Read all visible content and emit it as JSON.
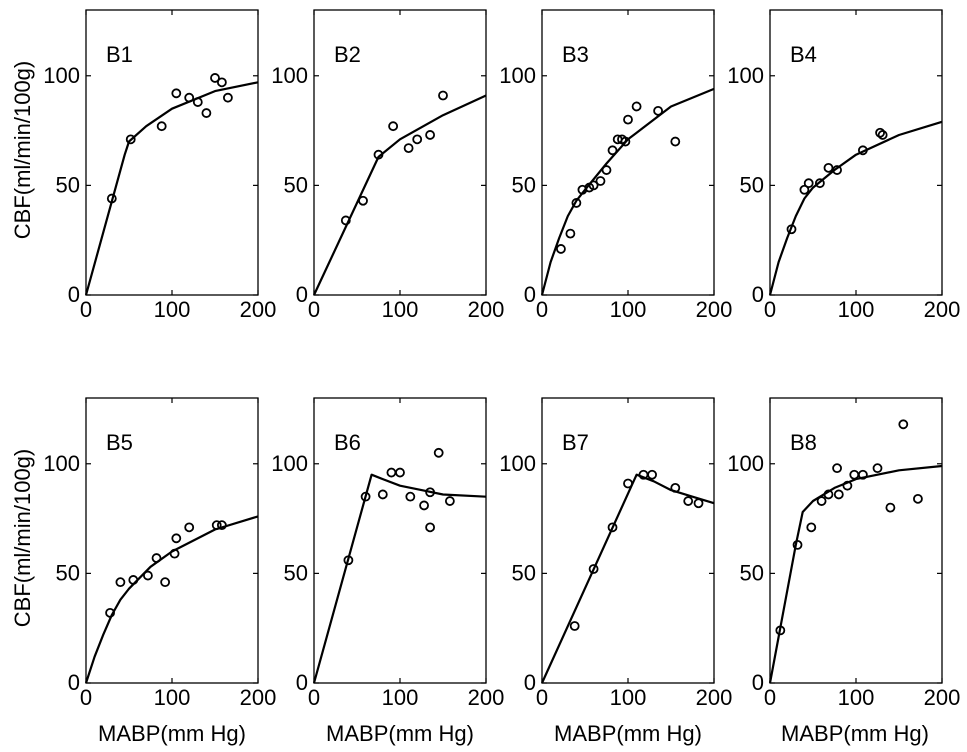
{
  "figure": {
    "ylabel": "CBF(ml/min/100g)",
    "xlabel": "MABP(mm Hg)"
  },
  "chart_data": [
    {
      "type": "scatter",
      "panel_label": "B1",
      "xlim": [
        0,
        200
      ],
      "ylim": [
        0,
        130
      ],
      "xticks": [
        0,
        100,
        200
      ],
      "yticks": [
        0,
        50,
        100
      ],
      "ylabel": "CBF(ml/min/100g)",
      "xlabel": "",
      "points": [
        [
          30,
          44
        ],
        [
          52,
          71
        ],
        [
          88,
          77
        ],
        [
          105,
          92
        ],
        [
          120,
          90
        ],
        [
          130,
          88
        ],
        [
          140,
          83
        ],
        [
          150,
          99
        ],
        [
          158,
          97
        ],
        [
          165,
          90
        ]
      ],
      "fit": [
        [
          0,
          0
        ],
        [
          45,
          64
        ],
        [
          50,
          70
        ],
        [
          70,
          77
        ],
        [
          100,
          85
        ],
        [
          150,
          93
        ],
        [
          200,
          97
        ]
      ]
    },
    {
      "type": "scatter",
      "panel_label": "B2",
      "xlim": [
        0,
        200
      ],
      "ylim": [
        0,
        130
      ],
      "xticks": [
        0,
        100,
        200
      ],
      "yticks": [
        0,
        50,
        100
      ],
      "ylabel": "",
      "xlabel": "",
      "points": [
        [
          37,
          34
        ],
        [
          57,
          43
        ],
        [
          75,
          64
        ],
        [
          92,
          77
        ],
        [
          110,
          67
        ],
        [
          120,
          71
        ],
        [
          135,
          73
        ],
        [
          150,
          91
        ]
      ],
      "fit": [
        [
          0,
          0
        ],
        [
          75,
          63
        ],
        [
          100,
          71
        ],
        [
          150,
          82
        ],
        [
          200,
          91
        ]
      ]
    },
    {
      "type": "scatter",
      "panel_label": "B3",
      "xlim": [
        0,
        200
      ],
      "ylim": [
        0,
        130
      ],
      "xticks": [
        0,
        100,
        200
      ],
      "yticks": [
        0,
        50,
        100
      ],
      "ylabel": "",
      "xlabel": "",
      "points": [
        [
          22,
          21
        ],
        [
          33,
          28
        ],
        [
          40,
          42
        ],
        [
          47,
          48
        ],
        [
          55,
          49
        ],
        [
          60,
          50
        ],
        [
          68,
          52
        ],
        [
          75,
          57
        ],
        [
          82,
          66
        ],
        [
          88,
          71
        ],
        [
          93,
          71
        ],
        [
          97,
          70
        ],
        [
          100,
          80
        ],
        [
          110,
          86
        ],
        [
          135,
          84
        ],
        [
          155,
          70
        ]
      ],
      "fit": [
        [
          0,
          0
        ],
        [
          10,
          15
        ],
        [
          20,
          26
        ],
        [
          30,
          36
        ],
        [
          40,
          43
        ],
        [
          50,
          48
        ],
        [
          75,
          60
        ],
        [
          100,
          71
        ],
        [
          150,
          86
        ],
        [
          200,
          94
        ]
      ]
    },
    {
      "type": "scatter",
      "panel_label": "B4",
      "xlim": [
        0,
        200
      ],
      "ylim": [
        0,
        130
      ],
      "xticks": [
        0,
        100,
        200
      ],
      "yticks": [
        0,
        50,
        100
      ],
      "ylabel": "",
      "xlabel": "",
      "points": [
        [
          25,
          30
        ],
        [
          40,
          48
        ],
        [
          45,
          51
        ],
        [
          58,
          51
        ],
        [
          68,
          58
        ],
        [
          78,
          57
        ],
        [
          108,
          66
        ],
        [
          128,
          74
        ],
        [
          131,
          73
        ]
      ],
      "fit": [
        [
          0,
          0
        ],
        [
          10,
          15
        ],
        [
          20,
          26
        ],
        [
          30,
          36
        ],
        [
          40,
          44
        ],
        [
          50,
          49
        ],
        [
          75,
          57
        ],
        [
          100,
          64
        ],
        [
          150,
          73
        ],
        [
          200,
          79
        ]
      ]
    },
    {
      "type": "scatter",
      "panel_label": "B5",
      "xlim": [
        0,
        200
      ],
      "ylim": [
        0,
        130
      ],
      "xticks": [
        0,
        100,
        200
      ],
      "yticks": [
        0,
        50,
        100
      ],
      "ylabel": "CBF(ml/min/100g)",
      "xlabel": "MABP(mm Hg)",
      "points": [
        [
          28,
          32
        ],
        [
          40,
          46
        ],
        [
          55,
          47
        ],
        [
          72,
          49
        ],
        [
          82,
          57
        ],
        [
          92,
          46
        ],
        [
          103,
          59
        ],
        [
          105,
          66
        ],
        [
          120,
          71
        ],
        [
          152,
          72
        ],
        [
          158,
          72
        ]
      ],
      "fit": [
        [
          0,
          0
        ],
        [
          10,
          12
        ],
        [
          20,
          22
        ],
        [
          30,
          31
        ],
        [
          40,
          38
        ],
        [
          50,
          43
        ],
        [
          75,
          53
        ],
        [
          100,
          60
        ],
        [
          150,
          70
        ],
        [
          200,
          76
        ]
      ]
    },
    {
      "type": "scatter",
      "panel_label": "B6",
      "xlim": [
        0,
        200
      ],
      "ylim": [
        0,
        130
      ],
      "xticks": [
        0,
        100,
        200
      ],
      "yticks": [
        0,
        50,
        100
      ],
      "ylabel": "",
      "xlabel": "MABP(mm Hg)",
      "points": [
        [
          40,
          56
        ],
        [
          60,
          85
        ],
        [
          80,
          86
        ],
        [
          90,
          96
        ],
        [
          100,
          96
        ],
        [
          112,
          85
        ],
        [
          128,
          81
        ],
        [
          135,
          71
        ],
        [
          135,
          87
        ],
        [
          145,
          105
        ],
        [
          158,
          83
        ]
      ],
      "fit": [
        [
          0,
          0
        ],
        [
          67,
          95
        ],
        [
          80,
          93
        ],
        [
          100,
          90
        ],
        [
          125,
          88
        ],
        [
          150,
          86
        ],
        [
          200,
          85
        ]
      ]
    },
    {
      "type": "scatter",
      "panel_label": "B7",
      "xlim": [
        0,
        200
      ],
      "ylim": [
        0,
        130
      ],
      "xticks": [
        0,
        100,
        200
      ],
      "yticks": [
        0,
        50,
        100
      ],
      "ylabel": "",
      "xlabel": "MABP(mm Hg)",
      "points": [
        [
          38,
          26
        ],
        [
          60,
          52
        ],
        [
          82,
          71
        ],
        [
          100,
          91
        ],
        [
          118,
          95
        ],
        [
          128,
          95
        ],
        [
          155,
          89
        ],
        [
          170,
          83
        ],
        [
          182,
          82
        ]
      ],
      "fit": [
        [
          0,
          0
        ],
        [
          110,
          95
        ],
        [
          130,
          92
        ],
        [
          150,
          88
        ],
        [
          175,
          85
        ],
        [
          200,
          82
        ]
      ]
    },
    {
      "type": "scatter",
      "panel_label": "B8",
      "xlim": [
        0,
        200
      ],
      "ylim": [
        0,
        130
      ],
      "xticks": [
        0,
        100,
        200
      ],
      "yticks": [
        0,
        50,
        100
      ],
      "ylabel": "",
      "xlabel": "MABP(mm Hg)",
      "points": [
        [
          12,
          24
        ],
        [
          32,
          63
        ],
        [
          48,
          71
        ],
        [
          60,
          83
        ],
        [
          68,
          86
        ],
        [
          78,
          98
        ],
        [
          80,
          86
        ],
        [
          90,
          90
        ],
        [
          98,
          95
        ],
        [
          108,
          95
        ],
        [
          125,
          98
        ],
        [
          140,
          80
        ],
        [
          155,
          118
        ],
        [
          172,
          84
        ]
      ],
      "fit": [
        [
          0,
          0
        ],
        [
          10,
          21
        ],
        [
          20,
          42
        ],
        [
          30,
          63
        ],
        [
          38,
          78
        ],
        [
          50,
          83
        ],
        [
          75,
          89
        ],
        [
          100,
          93
        ],
        [
          150,
          97
        ],
        [
          200,
          99
        ]
      ]
    }
  ]
}
